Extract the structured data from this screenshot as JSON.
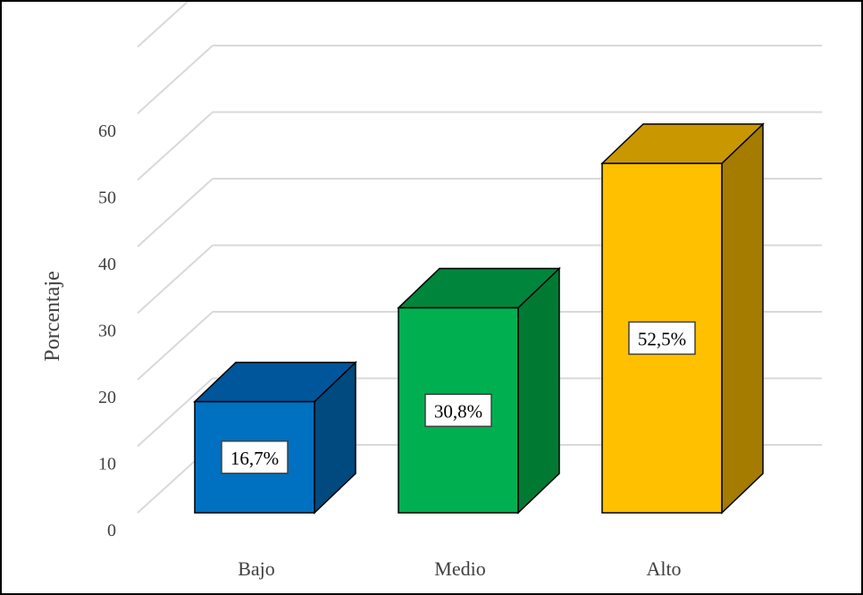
{
  "chart_data": {
    "type": "bar",
    "style": "3d-column",
    "categories": [
      "Bajo",
      "Medio",
      "Alto"
    ],
    "values": [
      16.7,
      30.8,
      52.5
    ],
    "data_labels": [
      "16,7%",
      "30,8%",
      "52,5%"
    ],
    "title": "",
    "xlabel": "",
    "ylabel": "Porcentaje",
    "ylim": [
      0,
      60
    ],
    "yticks": [
      0,
      10,
      20,
      30,
      40,
      50,
      60
    ],
    "grid": true,
    "legend": "none",
    "colors": {
      "front": [
        "#0070C0",
        "#00B050",
        "#FFC000"
      ],
      "top": [
        "#00569A",
        "#00863C",
        "#C99800"
      ],
      "side": [
        "#004A80",
        "#007A33",
        "#A57C00"
      ],
      "gridline": "#D9D9D9",
      "text": "#404040"
    }
  }
}
